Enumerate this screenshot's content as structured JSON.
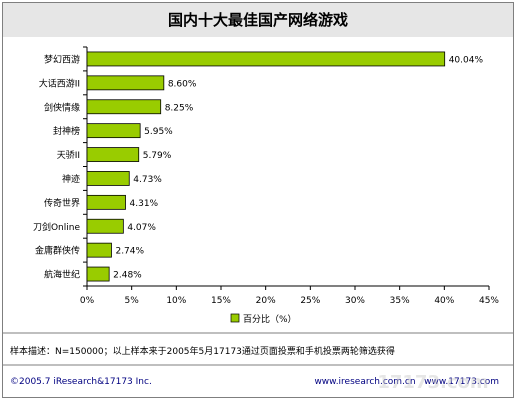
{
  "chart_data": {
    "type": "bar",
    "orientation": "horizontal",
    "title": "国内十大最佳国产网络游戏",
    "categories": [
      "梦幻西游",
      "大话西游II",
      "剑侠情缘",
      "封神榜",
      "天骄II",
      "神迹",
      "传奇世界",
      "刀剑Online",
      "金庸群侠传",
      "航海世纪"
    ],
    "values": [
      40.04,
      8.6,
      8.25,
      5.95,
      5.79,
      4.73,
      4.31,
      4.07,
      2.74,
      2.48
    ],
    "value_labels": [
      "40.04%",
      "8.60%",
      "8.25%",
      "5.95%",
      "5.79%",
      "4.73%",
      "4.31%",
      "4.07%",
      "2.74%",
      "2.48%"
    ],
    "xlim": [
      0,
      45
    ],
    "x_ticks": [
      0,
      5,
      10,
      15,
      20,
      25,
      30,
      35,
      40,
      45
    ],
    "x_tick_labels": [
      "0%",
      "5%",
      "10%",
      "15%",
      "20%",
      "25%",
      "30%",
      "35%",
      "40%",
      "45%"
    ],
    "legend": {
      "label": "百分比（%）",
      "position": "bottom"
    },
    "grid": false,
    "colors": {
      "bar_fill": "#99cc00",
      "bar_stroke": "#000000",
      "title_bg": "#e6e6e6"
    }
  },
  "notes": {
    "sample_text": "样本描述：N=150000；以上样本来于2005年5月17173通过页面投票和手机投票两轮筛选获得"
  },
  "footer": {
    "copyright": "©2005.7 iResearch&17173 Inc.",
    "links": "www.iresearch.com.cn   www.17173.com"
  },
  "watermark": "17173.com"
}
